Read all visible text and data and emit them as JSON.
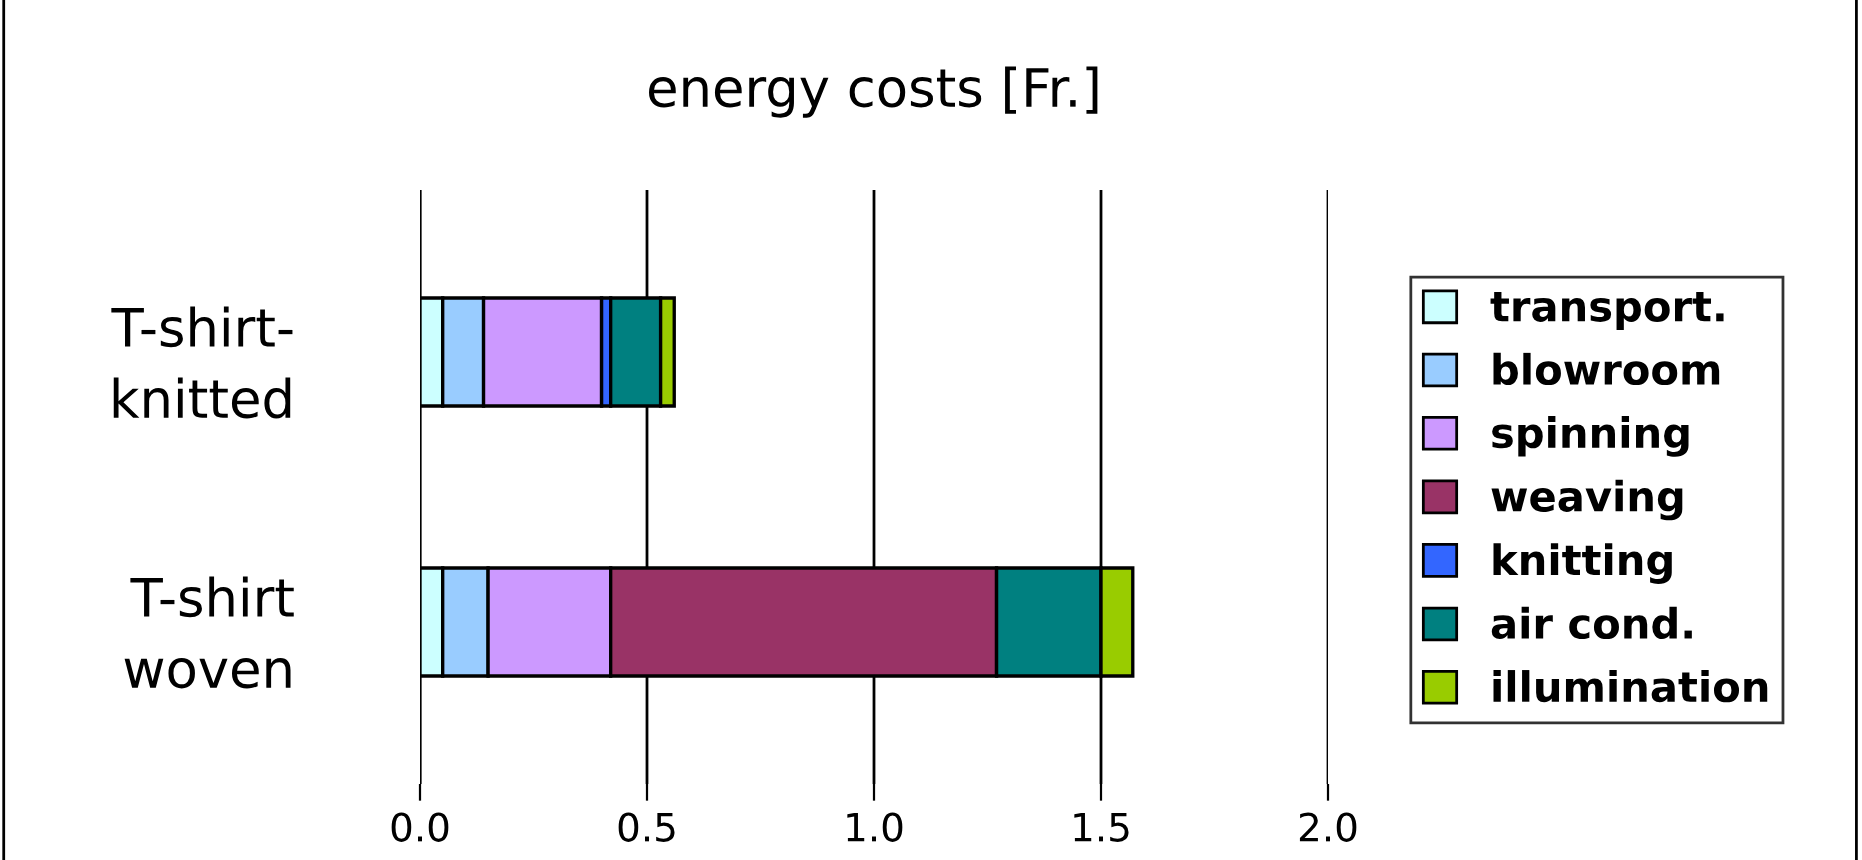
{
  "chart_data": {
    "type": "bar",
    "orientation": "horizontal",
    "stacked": true,
    "title": "energy costs [Fr.]",
    "categories": [
      "T-shirt-\nknitted",
      "T-shirt\nwoven"
    ],
    "series": [
      {
        "name": "transport.",
        "color": "#ccffff",
        "values": [
          0.05,
          0.05
        ]
      },
      {
        "name": "blowroom",
        "color": "#99ccff",
        "values": [
          0.09,
          0.1
        ]
      },
      {
        "name": "spinning",
        "color": "#cc99ff",
        "values": [
          0.26,
          0.27
        ]
      },
      {
        "name": "weaving",
        "color": "#993366",
        "values": [
          0,
          0.85
        ]
      },
      {
        "name": "knitting",
        "color": "#3366ff",
        "values": [
          0.02,
          0
        ]
      },
      {
        "name": "air cond.",
        "color": "#008080",
        "values": [
          0.11,
          0.23
        ]
      },
      {
        "name": "illumination",
        "color": "#99cc00",
        "values": [
          0.03,
          0.07
        ]
      }
    ],
    "xlim": [
      0,
      2
    ],
    "xticks": [
      {
        "value": 0,
        "label": "0.0"
      },
      {
        "value": 0.5,
        "label": "0.5"
      },
      {
        "value": 1,
        "label": "1.0"
      },
      {
        "value": 1.5,
        "label": "1.5"
      },
      {
        "value": 2,
        "label": "2.0"
      }
    ],
    "grid": "x",
    "legend": "right"
  }
}
